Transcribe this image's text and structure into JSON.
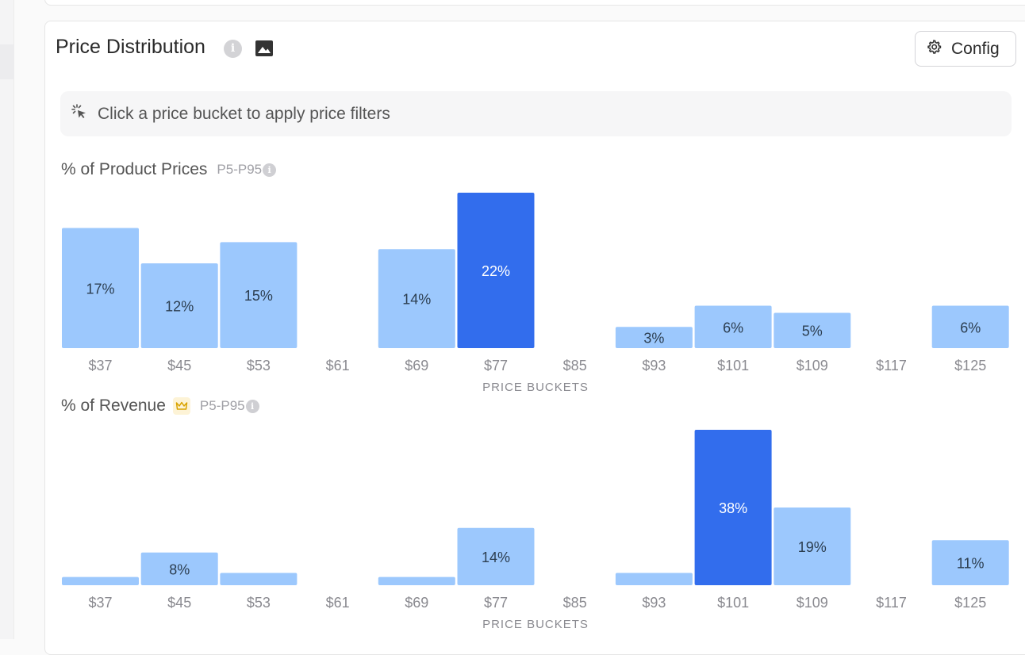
{
  "header": {
    "title": "Price Distribution",
    "info_icon": "info-icon",
    "image_icon": "image-icon",
    "config_label": "Config",
    "config_icon": "gear-icon"
  },
  "hint": {
    "icon": "click-icon",
    "text": "Click a price bucket to apply price filters"
  },
  "colors": {
    "bar": "#9cc8fd",
    "bar_selected": "#326ded",
    "label_dark": "#2c3e50",
    "label_light": "#ffffff"
  },
  "chart_data": [
    {
      "type": "bar",
      "title": "% of Product Prices",
      "tag": "P5-P95",
      "xlabel": "PRICE BUCKETS",
      "ylabel": "",
      "ylim": [
        0,
        22
      ],
      "categories": [
        "$37",
        "$45",
        "$53",
        "$61",
        "$69",
        "$77",
        "$85",
        "$93",
        "$101",
        "$109",
        "$117",
        "$125"
      ],
      "values": [
        17,
        12,
        15,
        0,
        14,
        22,
        0,
        3,
        6,
        5,
        0,
        6
      ],
      "labels": [
        "17%",
        "12%",
        "15%",
        "",
        "14%",
        "22%",
        "",
        "3%",
        "6%",
        "5%",
        "",
        "6%"
      ],
      "highlighted": [
        5
      ]
    },
    {
      "type": "bar",
      "title": "% of Revenue",
      "tag": "P5-P95",
      "premium_icon": "crown-icon",
      "xlabel": "PRICE BUCKETS",
      "ylabel": "",
      "ylim": [
        0,
        38
      ],
      "categories": [
        "$37",
        "$45",
        "$53",
        "$61",
        "$69",
        "$77",
        "$85",
        "$93",
        "$101",
        "$109",
        "$117",
        "$125"
      ],
      "values": [
        2,
        8,
        3,
        0,
        2,
        14,
        0,
        3,
        38,
        19,
        0,
        11
      ],
      "labels": [
        "",
        "8%",
        "",
        "",
        "",
        "14%",
        "",
        "",
        "38%",
        "19%",
        "",
        "11%"
      ],
      "highlighted": [
        8
      ]
    }
  ]
}
